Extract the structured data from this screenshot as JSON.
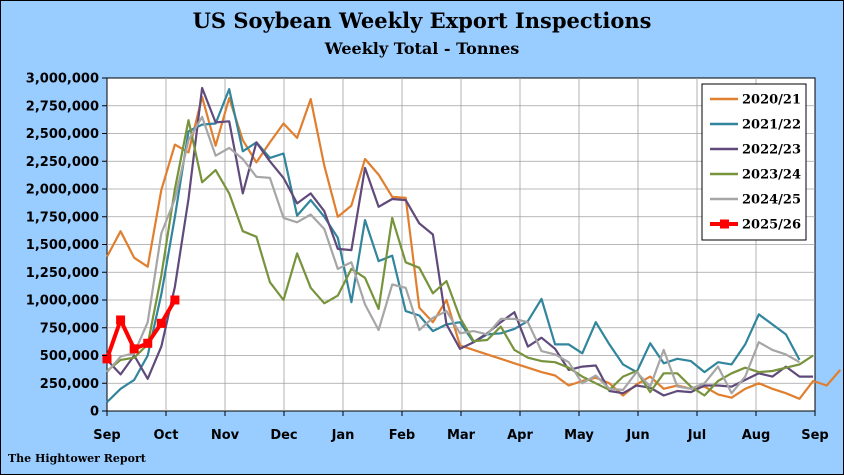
{
  "chart_data": {
    "type": "line",
    "title": "US Soybean Weekly Export Inspections",
    "subtitle": "Weekly Total - Tonnes",
    "source": "The Hightower Report",
    "xlabel": "",
    "ylabel": "",
    "ylim": [
      0,
      3000000
    ],
    "yticks": [
      "0",
      "250,000",
      "500,000",
      "750,000",
      "1,000,000",
      "1,250,000",
      "1,500,000",
      "1,750,000",
      "2,000,000",
      "2,250,000",
      "2,500,000",
      "2,750,000",
      "3,000,000"
    ],
    "xticks": [
      "Sep",
      "Oct",
      "Nov",
      "Dec",
      "Jan",
      "Feb",
      "Mar",
      "Apr",
      "May",
      "Jun",
      "Jul",
      "Aug",
      "Sep"
    ],
    "x_unit": "week of marketing year (Sep 1 = week 0)",
    "grid": true,
    "legend_position": "top-right",
    "series": [
      {
        "name": "2020/21",
        "color": "#e07f2f",
        "marker": false,
        "values": [
          1390000,
          1620000,
          1380000,
          1300000,
          1990000,
          2400000,
          2330000,
          2830000,
          2390000,
          2820000,
          2440000,
          2240000,
          2420000,
          2590000,
          2460000,
          2810000,
          2210000,
          1750000,
          1850000,
          2270000,
          2130000,
          1930000,
          1920000,
          930000,
          800000,
          1000000,
          590000,
          550000,
          510000,
          470000,
          430000,
          390000,
          350000,
          320000,
          230000,
          270000,
          300000,
          250000,
          140000,
          240000,
          310000,
          200000,
          230000,
          200000,
          220000,
          150000,
          120000,
          200000,
          250000,
          200000,
          160000,
          110000,
          270000,
          230000,
          370000
        ]
      },
      {
        "name": "2021/22",
        "color": "#31859c",
        "marker": false,
        "values": [
          80000,
          200000,
          280000,
          500000,
          1050000,
          1750000,
          2520000,
          2580000,
          2590000,
          2900000,
          2340000,
          2420000,
          2280000,
          2320000,
          1760000,
          1900000,
          1750000,
          1560000,
          980000,
          1720000,
          1350000,
          1400000,
          900000,
          860000,
          720000,
          780000,
          800000,
          620000,
          690000,
          700000,
          740000,
          810000,
          1010000,
          600000,
          600000,
          520000,
          800000,
          600000,
          420000,
          350000,
          610000,
          430000,
          470000,
          450000,
          350000,
          440000,
          420000,
          600000,
          870000,
          780000,
          690000,
          460000
        ]
      },
      {
        "name": "2022/23",
        "color": "#604a7b",
        "marker": false,
        "values": [
          460000,
          330000,
          500000,
          290000,
          580000,
          1120000,
          1910000,
          2910000,
          2600000,
          2610000,
          1960000,
          2420000,
          2250000,
          2100000,
          1870000,
          1960000,
          1800000,
          1460000,
          1450000,
          2190000,
          1840000,
          1910000,
          1900000,
          1690000,
          1590000,
          780000,
          560000,
          620000,
          700000,
          800000,
          890000,
          580000,
          660000,
          560000,
          370000,
          400000,
          410000,
          180000,
          160000,
          230000,
          210000,
          140000,
          180000,
          170000,
          230000,
          230000,
          220000,
          280000,
          340000,
          310000,
          400000,
          310000,
          310000
        ]
      },
      {
        "name": "2023/24",
        "color": "#77933c",
        "marker": false,
        "values": [
          360000,
          460000,
          480000,
          600000,
          1220000,
          2000000,
          2620000,
          2060000,
          2170000,
          1960000,
          1620000,
          1570000,
          1160000,
          1000000,
          1420000,
          1110000,
          970000,
          1040000,
          1280000,
          1200000,
          920000,
          1740000,
          1340000,
          1290000,
          1060000,
          1170000,
          840000,
          630000,
          640000,
          760000,
          550000,
          480000,
          450000,
          440000,
          390000,
          310000,
          250000,
          190000,
          310000,
          360000,
          170000,
          340000,
          340000,
          220000,
          140000,
          270000,
          340000,
          390000,
          350000,
          360000,
          390000,
          420000,
          500000
        ]
      },
      {
        "name": "2024/25",
        "color": "#a6a6a6",
        "marker": false,
        "values": [
          350000,
          490000,
          520000,
          800000,
          1600000,
          1910000,
          2440000,
          2650000,
          2300000,
          2370000,
          2270000,
          2110000,
          2100000,
          1740000,
          1700000,
          1770000,
          1640000,
          1280000,
          1340000,
          960000,
          730000,
          1140000,
          1110000,
          730000,
          840000,
          900000,
          700000,
          720000,
          690000,
          830000,
          830000,
          800000,
          540000,
          510000,
          440000,
          250000,
          320000,
          200000,
          190000,
          350000,
          220000,
          550000,
          220000,
          200000,
          250000,
          400000,
          160000,
          310000,
          620000,
          550000,
          510000,
          440000
        ]
      },
      {
        "name": "2025/26",
        "color": "#ff0000",
        "marker": true,
        "values": [
          470000,
          820000,
          560000,
          610000,
          790000,
          1000000
        ]
      }
    ]
  }
}
